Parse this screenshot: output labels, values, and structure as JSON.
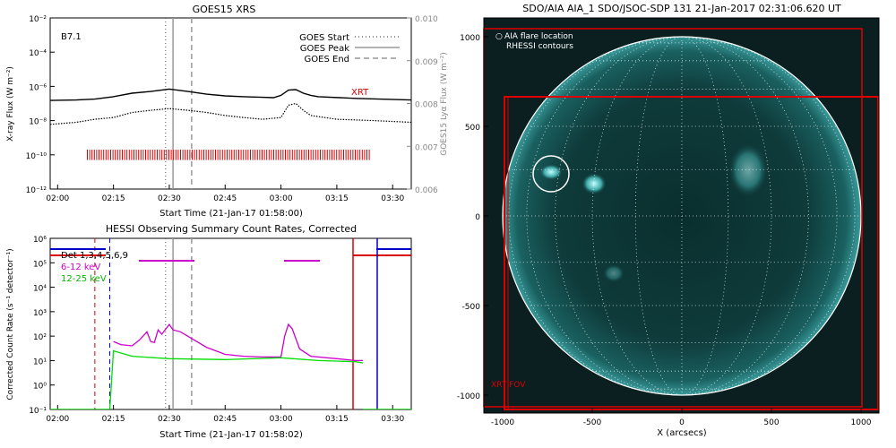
{
  "chart_data": [
    {
      "type": "line",
      "title": "GOES15 XRS",
      "xlabel": "Start Time (21-Jan-17 01:58:00)",
      "ylabel": "X-ray Flux (W m⁻²)",
      "ylabel_right": "GOES15 Lyα Flux (W m⁻²)",
      "panel_label": "B7.1",
      "x_ticks": [
        "02:00",
        "02:15",
        "02:30",
        "02:45",
        "03:00",
        "03:15",
        "03:30"
      ],
      "xlim": [
        "01:58",
        "03:35"
      ],
      "ylog": true,
      "ylim": [
        1e-12,
        0.01
      ],
      "y_ticks": [
        "10⁻¹²",
        "10⁻¹⁰",
        "10⁻⁸",
        "10⁻⁶",
        "10⁻⁴",
        "10⁻²"
      ],
      "y_right_ticks": [
        "0.006",
        "0.007",
        "0.008",
        "0.009",
        "0.010"
      ],
      "legend": [
        "GOES Start",
        "GOES Peak",
        "GOES End"
      ],
      "legend_position": "top-right",
      "markers": {
        "start": "02:29",
        "peak": "02:31",
        "end": "02:36"
      },
      "xrt_label": "XRT",
      "series": [
        {
          "name": "solid",
          "color": "#000000",
          "x": [
            "01:58",
            "02:05",
            "02:10",
            "02:15",
            "02:20",
            "02:25",
            "02:30",
            "02:35",
            "02:40",
            "02:45",
            "02:50",
            "02:55",
            "02:58",
            "03:00",
            "03:02",
            "03:04",
            "03:06",
            "03:08",
            "03:10",
            "03:20",
            "03:35"
          ],
          "y": [
            1.5e-07,
            1.6e-07,
            1.8e-07,
            2.5e-07,
            4e-07,
            5e-07,
            7e-07,
            5e-07,
            3.5e-07,
            2.8e-07,
            2.5e-07,
            2.3e-07,
            2.2e-07,
            3e-07,
            6e-07,
            6.5e-07,
            4e-07,
            3e-07,
            2.5e-07,
            2e-07,
            1.6e-07
          ]
        },
        {
          "name": "dotted",
          "color": "#000000",
          "x": [
            "01:58",
            "02:05",
            "02:10",
            "02:15",
            "02:20",
            "02:25",
            "02:30",
            "02:35",
            "02:40",
            "02:45",
            "02:50",
            "02:55",
            "03:00",
            "03:02",
            "03:04",
            "03:06",
            "03:08",
            "03:15",
            "03:25",
            "03:35"
          ],
          "y": [
            6e-09,
            8e-09,
            1.2e-08,
            1.5e-08,
            3e-08,
            4e-08,
            5e-08,
            4e-08,
            3e-08,
            2e-08,
            1.5e-08,
            1.2e-08,
            1.5e-08,
            8e-08,
            1e-07,
            4e-08,
            2e-08,
            1.2e-08,
            1e-08,
            8e-09
          ]
        }
      ]
    },
    {
      "type": "line",
      "title": "HESSI Observing Summary Count Rates, Corrected",
      "xlabel": "Start Time (21-Jan-17 01:58:02)",
      "ylabel": "Corrected Count Rate (s⁻¹ detector⁻¹)",
      "x_ticks": [
        "02:00",
        "02:15",
        "02:30",
        "02:45",
        "03:00",
        "03:15",
        "03:30"
      ],
      "xlim": [
        "01:58",
        "03:35"
      ],
      "ylog": true,
      "ylim": [
        0.1,
        1000000.0
      ],
      "y_ticks": [
        "10⁻¹",
        "10⁰",
        "10¹",
        "10²",
        "10³",
        "10⁴",
        "10⁵",
        "10⁶"
      ],
      "legend": [
        "Det 1,3,4,5,6,9",
        "6-12 keV",
        "12-25 keV"
      ],
      "legend_position": "top-left",
      "series": [
        {
          "name": "6-12 keV",
          "color": "#cc00cc",
          "x": [
            "02:15",
            "02:17",
            "02:20",
            "02:22",
            "02:24",
            "02:25",
            "02:26",
            "02:27",
            "02:28",
            "02:30",
            "02:31",
            "02:33",
            "02:36",
            "02:40",
            "02:45",
            "02:50",
            "02:55",
            "03:00",
            "03:01",
            "03:02",
            "03:03",
            "03:05",
            "03:08",
            "03:15",
            "03:20",
            "03:22"
          ],
          "y": [
            60,
            45,
            40,
            70,
            150,
            60,
            55,
            180,
            120,
            300,
            180,
            150,
            80,
            35,
            18,
            15,
            14,
            14,
            100,
            300,
            200,
            30,
            15,
            12,
            10,
            10
          ]
        },
        {
          "name": "12-25 keV",
          "color": "#00dd00",
          "x": [
            "02:14",
            "02:15",
            "02:20",
            "02:30",
            "02:45",
            "03:00",
            "03:10",
            "03:20",
            "03:22"
          ],
          "y": [
            0.1,
            25,
            15,
            12,
            11,
            13,
            10,
            9,
            8
          ]
        }
      ]
    },
    {
      "type": "image",
      "title": "SDO/AIA AIA_1 SDO/JSOC-SDP 131 21-Jan-2017 02:31:06.620 UT",
      "xlabel": "X (arcsecs)",
      "x_ticks": [
        "-1000",
        "-500",
        "0",
        "500",
        "1000"
      ],
      "y_ticks": [
        "1000",
        "500",
        "0",
        "-500",
        "-1000"
      ],
      "xlim": [
        -1100,
        1100
      ],
      "ylim": [
        -1100,
        1100
      ],
      "legend": [
        "AIA flare location",
        "RHESSI contours"
      ],
      "fov_label": "XRT FOV",
      "flare_location": {
        "x": -720,
        "y": 220
      }
    }
  ]
}
